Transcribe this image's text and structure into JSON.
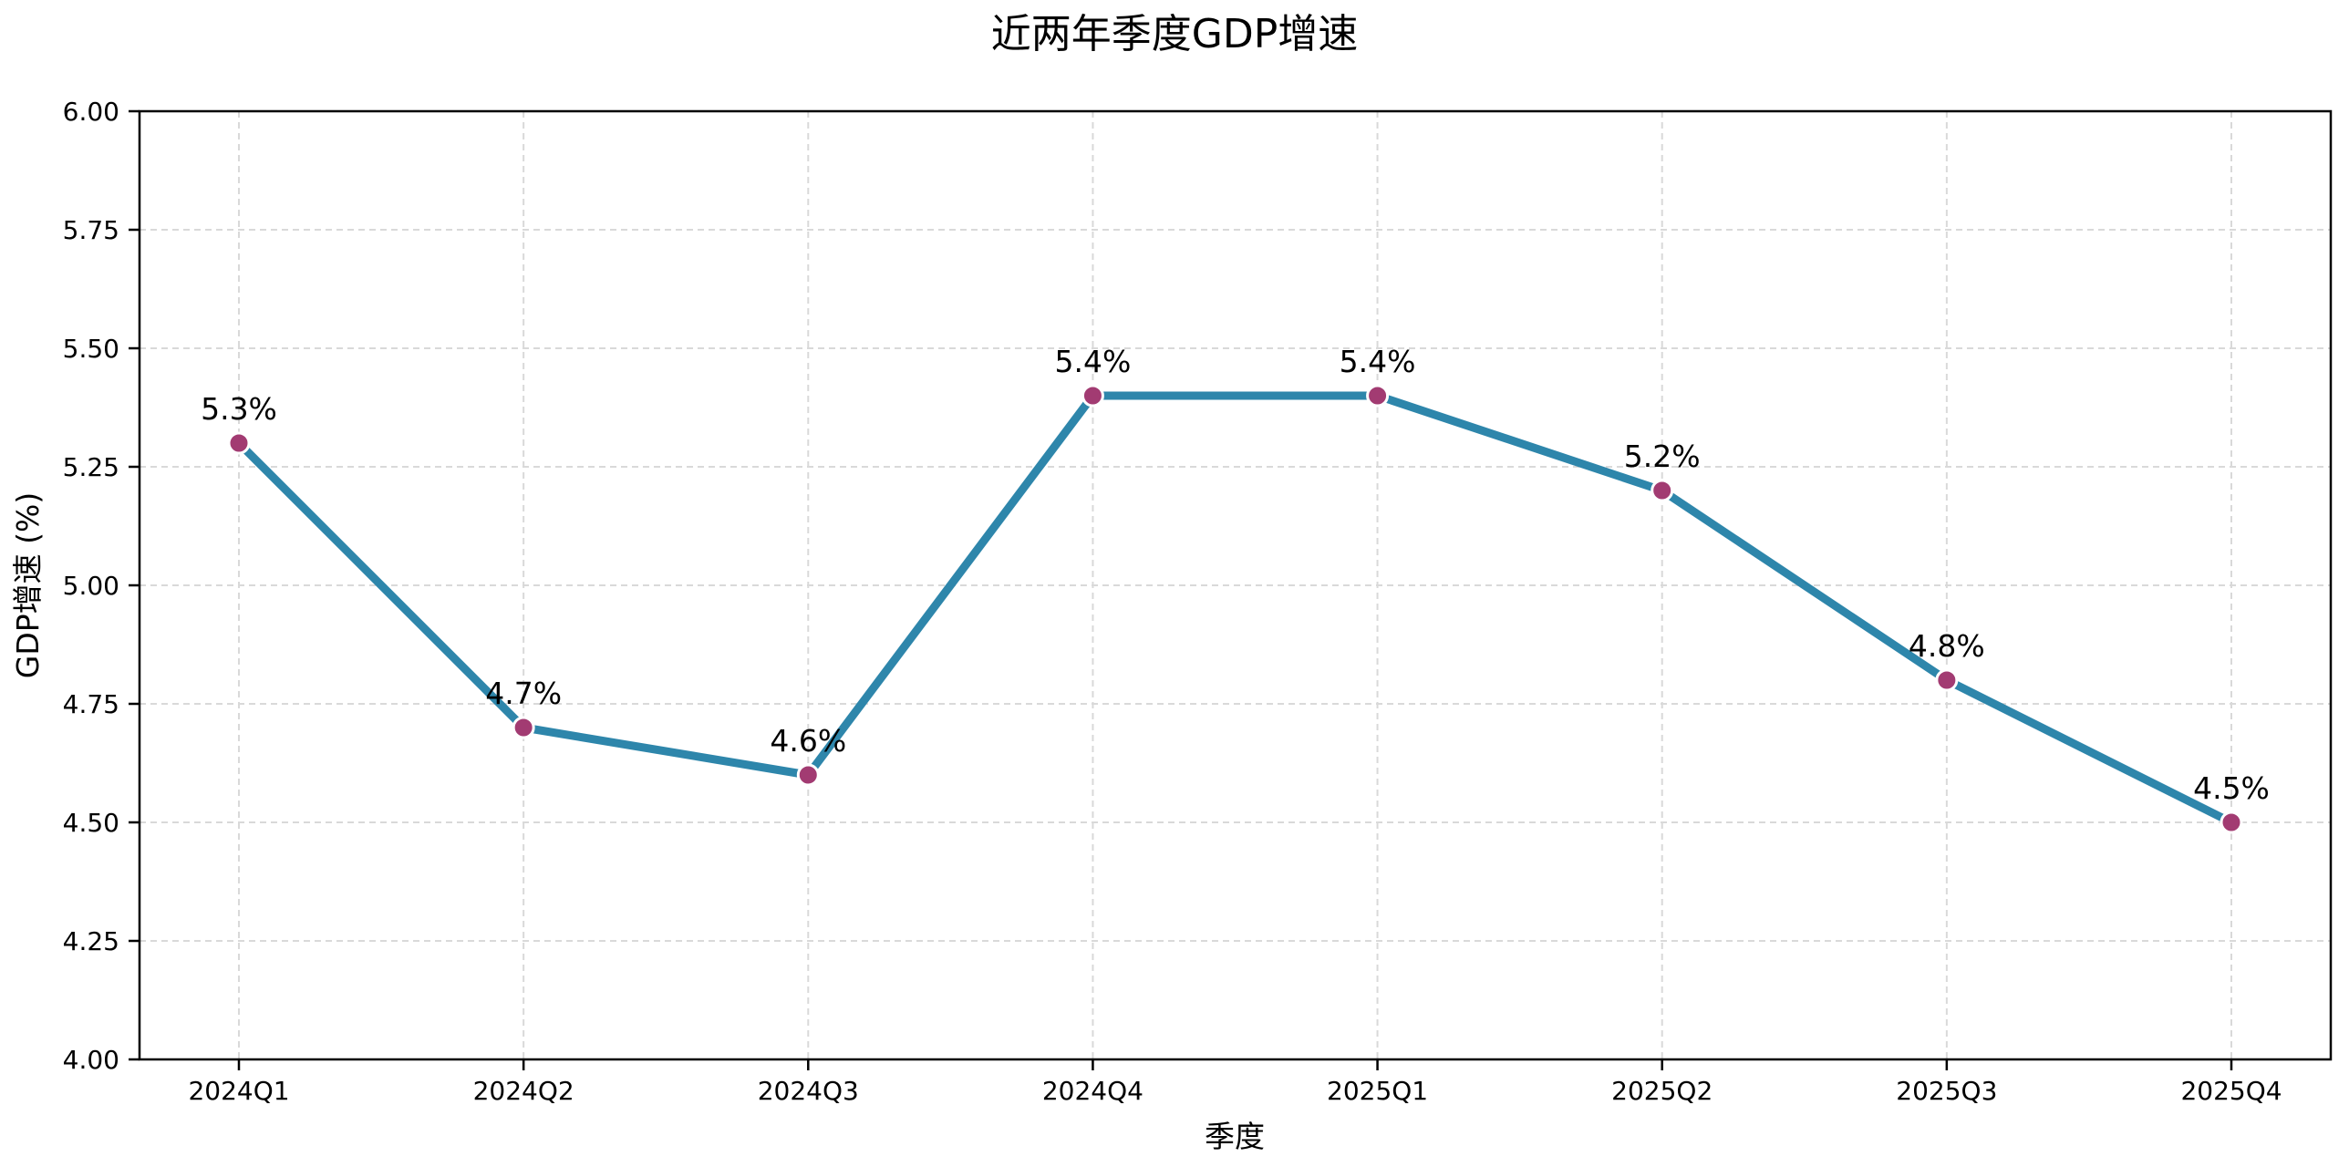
{
  "chart_data": {
    "type": "line",
    "title": "近两年季度GDP增速",
    "xlabel": "季度",
    "ylabel": "GDP增速 (%)",
    "categories": [
      "2024Q1",
      "2024Q2",
      "2024Q3",
      "2024Q4",
      "2025Q1",
      "2025Q2",
      "2025Q3",
      "2025Q4"
    ],
    "series": [
      {
        "name": "GDP增速",
        "values": [
          5.3,
          4.7,
          4.6,
          5.4,
          5.4,
          5.2,
          4.8,
          4.5
        ]
      }
    ],
    "point_labels": [
      "5.3%",
      "4.7%",
      "4.6%",
      "5.4%",
      "5.4%",
      "5.2%",
      "4.8%",
      "4.5%"
    ],
    "ylim": [
      4.0,
      6.0
    ],
    "yticks": {
      "values": [
        4.0,
        4.25,
        4.5,
        4.75,
        5.0,
        5.25,
        5.5,
        5.75,
        6.0
      ],
      "labels": [
        "4.00",
        "4.25",
        "4.50",
        "4.75",
        "5.00",
        "5.25",
        "5.50",
        "5.75",
        "6.00"
      ]
    },
    "grid": true,
    "grid_style": "dashed",
    "legend": "none",
    "colors": {
      "line": "#2E86AB",
      "marker": "#A23B72",
      "marker_edge": "#ffffff",
      "grid": "#d9d9d9",
      "axis": "#000000",
      "text": "#000000",
      "background": "#ffffff"
    }
  }
}
